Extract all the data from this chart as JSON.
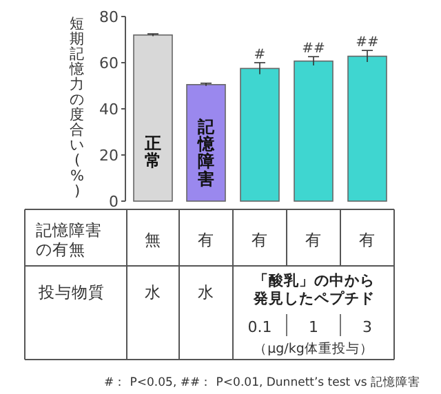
{
  "chart_data": {
    "type": "bar",
    "ylabel": "短期記憶力の度合い(%)",
    "categories": [
      null,
      null,
      null,
      null,
      null
    ],
    "values": [
      72,
      50.5,
      57.5,
      60.7,
      62.8
    ],
    "errors": [
      0.5,
      0.6,
      2.5,
      1.9,
      2.5
    ],
    "colors": [
      "#d8d8d8",
      "#9a88ee",
      "#3fd6d0",
      "#3fd6d0",
      "#3fd6d0"
    ],
    "ylim": [
      0,
      80
    ],
    "yticks": [
      0,
      20,
      40,
      60,
      80
    ],
    "grid": false,
    "annotations": [
      "正常",
      "記憶障害",
      "記憶障害の有無",
      "無",
      "有",
      "有",
      "有",
      "有",
      "投与物質",
      "水",
      "水",
      "「酸乳」の中から発見したペプチド",
      "0.1",
      "1",
      "3",
      "（μg/kg体重投与）",
      "#",
      "##",
      "##",
      "#： P<0.05, ##： P<0.01, Dunnett’s test vs 記憶障害"
    ]
  }
}
